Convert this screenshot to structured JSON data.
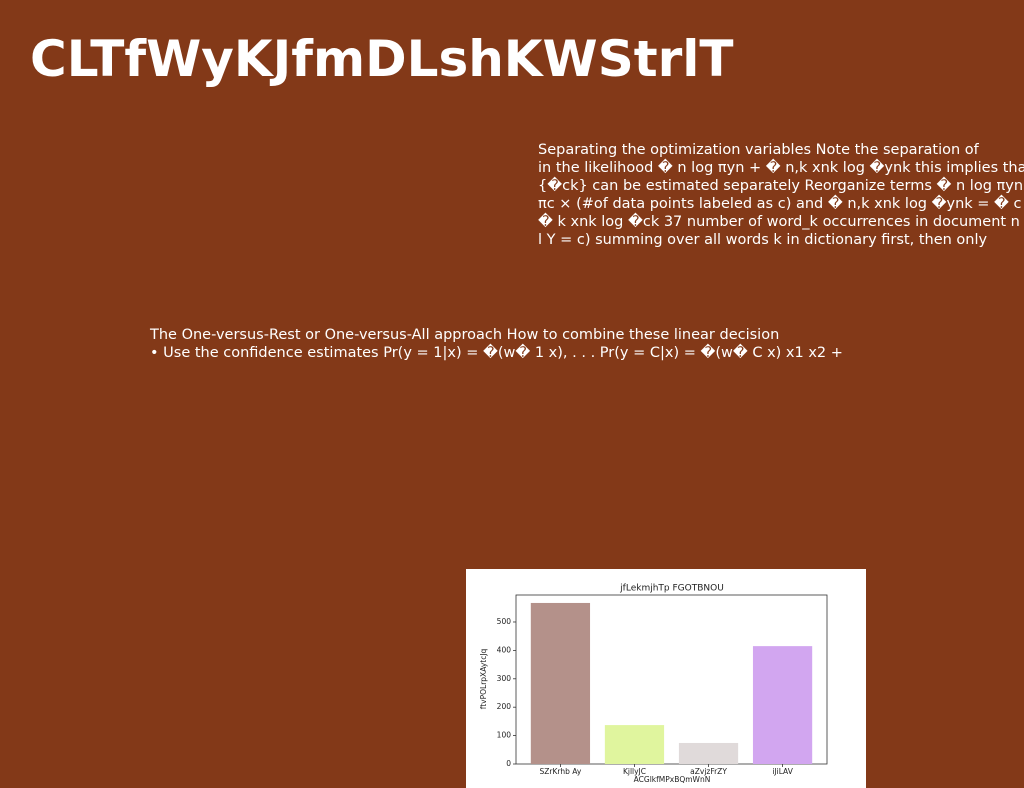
{
  "title": "CLTfWyKJfmDLshKWStrlT",
  "text_blocks": [
    [
      "Separating the optimization variables Note the separation of",
      "in the likelihood � n log πyn + � n,k xnk log �ynk this implies that {πc}",
      "{�ck} can be estimated separately Reorganize terms � n log πyn = � c",
      "πc × (#of data points labeled as c) and � n,k xnk log �ynk = � c �",
      "� k xnk log �ck 37 number of word_k occurrences in document n",
      "l Y = c) summing over all words k in dictionary first, then only"
    ],
    [
      "The One-versus-Rest or One-versus-All approach How to combine these linear decision",
      "• Use the confidence estimates Pr(y = 1|x) = �(w� 1 x), . . . Pr(y = C|x) = �(w� C x) x1 x2 +"
    ]
  ],
  "chart_data": {
    "type": "bar",
    "title": "jfLekmjhTp FGOTBNOU",
    "x_label": "ACGlkfMPxBQmWnN",
    "y_label": "ftvPOLrpXAytcJq",
    "categories": [
      "SZrKrhb Ay",
      "KjllyJC",
      "aZvjzFrZY",
      "iJiLAV"
    ],
    "values": [
      567,
      137,
      74,
      415
    ],
    "colors": [
      "#b4918a",
      "#e0f59e",
      "#e0dada",
      "#d2a6f0"
    ],
    "ylim": [
      0,
      595
    ],
    "yticks": [
      0,
      100,
      200,
      300,
      400,
      500
    ]
  }
}
